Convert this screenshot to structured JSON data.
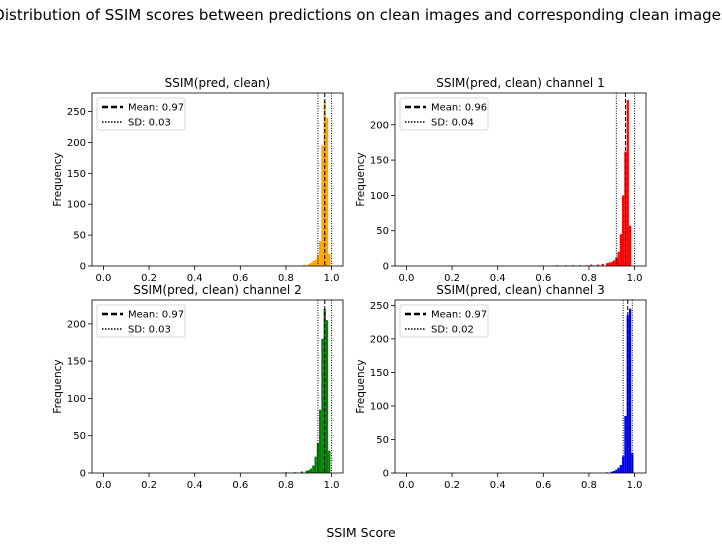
{
  "figure": {
    "suptitle": "Distribution of SSIM scores between predictions on clean images and corresponding clean images",
    "xlabel": "SSIM Score"
  },
  "chart_data": [
    {
      "type": "histogram",
      "title": "SSIM(pred, clean)",
      "ylabel": "Frequency",
      "color": "#ffa500",
      "xlim": [
        -0.05,
        1.05
      ],
      "ylim": [
        0,
        280
      ],
      "xticks": [
        0.0,
        0.2,
        0.4,
        0.6,
        0.8,
        1.0
      ],
      "xtick_labels": [
        "0.0",
        "0.2",
        "0.4",
        "0.6",
        "0.8",
        "1.0"
      ],
      "yticks": [
        0,
        50,
        100,
        150,
        200,
        250
      ],
      "bin_width": 0.01,
      "bins": [
        {
          "x": 0.8,
          "y": 1
        },
        {
          "x": 0.83,
          "y": 1
        },
        {
          "x": 0.86,
          "y": 1
        },
        {
          "x": 0.88,
          "y": 2
        },
        {
          "x": 0.9,
          "y": 3
        },
        {
          "x": 0.91,
          "y": 5
        },
        {
          "x": 0.92,
          "y": 8
        },
        {
          "x": 0.93,
          "y": 10
        },
        {
          "x": 0.94,
          "y": 18
        },
        {
          "x": 0.95,
          "y": 40
        },
        {
          "x": 0.96,
          "y": 195
        },
        {
          "x": 0.97,
          "y": 268
        },
        {
          "x": 0.98,
          "y": 240
        },
        {
          "x": 0.99,
          "y": 20
        }
      ],
      "mean": 0.97,
      "sd": 0.03,
      "legend": {
        "position": "upper-left",
        "mean_label": "Mean: 0.97",
        "sd_label": "SD: 0.03"
      }
    },
    {
      "type": "histogram",
      "title": "SSIM(pred, clean) channel 1",
      "ylabel": "Frequency",
      "color": "#ff0000",
      "xlim": [
        -0.05,
        1.05
      ],
      "ylim": [
        0,
        245
      ],
      "xticks": [
        0.0,
        0.2,
        0.4,
        0.6,
        0.8,
        1.0
      ],
      "xtick_labels": [
        "0.0",
        "0.2",
        "0.4",
        "0.6",
        "0.8",
        "1.0"
      ],
      "yticks": [
        0,
        50,
        100,
        150,
        200
      ],
      "bin_width": 0.01,
      "bins": [
        {
          "x": 0.66,
          "y": 1
        },
        {
          "x": 0.7,
          "y": 1
        },
        {
          "x": 0.73,
          "y": 1
        },
        {
          "x": 0.76,
          "y": 1
        },
        {
          "x": 0.79,
          "y": 1
        },
        {
          "x": 0.81,
          "y": 2
        },
        {
          "x": 0.84,
          "y": 2
        },
        {
          "x": 0.86,
          "y": 3
        },
        {
          "x": 0.88,
          "y": 4
        },
        {
          "x": 0.89,
          "y": 5
        },
        {
          "x": 0.9,
          "y": 6
        },
        {
          "x": 0.91,
          "y": 8
        },
        {
          "x": 0.92,
          "y": 12
        },
        {
          "x": 0.93,
          "y": 20
        },
        {
          "x": 0.94,
          "y": 45
        },
        {
          "x": 0.95,
          "y": 100
        },
        {
          "x": 0.96,
          "y": 162
        },
        {
          "x": 0.97,
          "y": 235
        },
        {
          "x": 0.98,
          "y": 57
        }
      ],
      "mean": 0.96,
      "sd": 0.04,
      "legend": {
        "position": "upper-left",
        "mean_label": "Mean: 0.96",
        "sd_label": "SD: 0.04"
      }
    },
    {
      "type": "histogram",
      "title": "SSIM(pred, clean) channel 2",
      "ylabel": "Frequency",
      "color": "#008000",
      "xlim": [
        -0.05,
        1.05
      ],
      "ylim": [
        0,
        232
      ],
      "xticks": [
        0.0,
        0.2,
        0.4,
        0.6,
        0.8,
        1.0
      ],
      "xtick_labels": [
        "0.0",
        "0.2",
        "0.4",
        "0.6",
        "0.8",
        "1.0"
      ],
      "yticks": [
        0,
        50,
        100,
        150,
        200
      ],
      "bin_width": 0.01,
      "bins": [
        {
          "x": 0.8,
          "y": 1
        },
        {
          "x": 0.84,
          "y": 1
        },
        {
          "x": 0.87,
          "y": 2
        },
        {
          "x": 0.89,
          "y": 3
        },
        {
          "x": 0.9,
          "y": 4
        },
        {
          "x": 0.91,
          "y": 6
        },
        {
          "x": 0.92,
          "y": 10
        },
        {
          "x": 0.93,
          "y": 22
        },
        {
          "x": 0.94,
          "y": 40
        },
        {
          "x": 0.95,
          "y": 85
        },
        {
          "x": 0.96,
          "y": 180
        },
        {
          "x": 0.97,
          "y": 220
        },
        {
          "x": 0.98,
          "y": 205
        },
        {
          "x": 0.99,
          "y": 30
        }
      ],
      "mean": 0.97,
      "sd": 0.03,
      "legend": {
        "position": "upper-left",
        "mean_label": "Mean: 0.97",
        "sd_label": "SD: 0.03"
      }
    },
    {
      "type": "histogram",
      "title": "SSIM(pred, clean) channel 3",
      "ylabel": "Frequency",
      "color": "#0000ff",
      "xlim": [
        -0.05,
        1.05
      ],
      "ylim": [
        0,
        258
      ],
      "xticks": [
        0.0,
        0.2,
        0.4,
        0.6,
        0.8,
        1.0
      ],
      "xtick_labels": [
        "0.0",
        "0.2",
        "0.4",
        "0.6",
        "0.8",
        "1.0"
      ],
      "yticks": [
        0,
        50,
        100,
        150,
        200,
        250
      ],
      "bin_width": 0.01,
      "bins": [
        {
          "x": 0.88,
          "y": 1
        },
        {
          "x": 0.9,
          "y": 2
        },
        {
          "x": 0.91,
          "y": 3
        },
        {
          "x": 0.92,
          "y": 5
        },
        {
          "x": 0.93,
          "y": 8
        },
        {
          "x": 0.94,
          "y": 12
        },
        {
          "x": 0.95,
          "y": 25
        },
        {
          "x": 0.96,
          "y": 85
        },
        {
          "x": 0.97,
          "y": 235
        },
        {
          "x": 0.98,
          "y": 245
        },
        {
          "x": 0.99,
          "y": 30
        }
      ],
      "mean": 0.97,
      "sd": 0.02,
      "legend": {
        "position": "upper-left",
        "mean_label": "Mean: 0.97",
        "sd_label": "SD: 0.02"
      }
    }
  ]
}
